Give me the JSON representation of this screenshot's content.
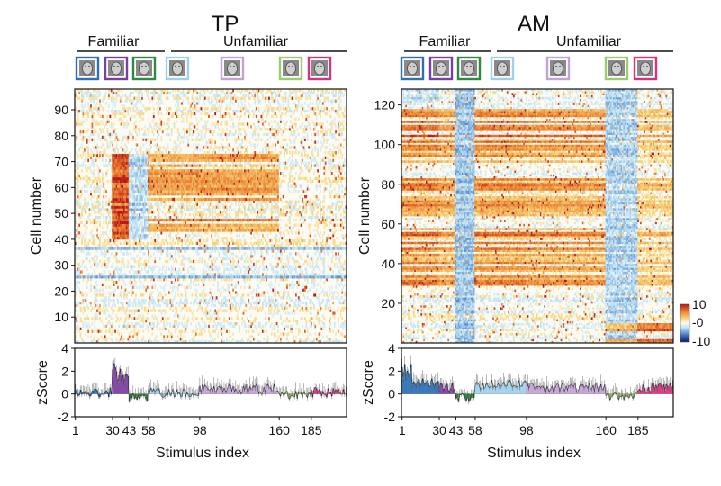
{
  "colors": {
    "stim_category": [
      "#2f6fb3",
      "#7b3fa0",
      "#2e8b3e",
      "#9fd0ea",
      "#c2a2d8",
      "#9dcc6e",
      "#d6337f"
    ],
    "colormap": [
      "#1a1760",
      "#3b6fc0",
      "#bfe3f5",
      "#fbfbf4",
      "#f7d67a",
      "#e8762c",
      "#b31717"
    ]
  },
  "chart_data": [
    {
      "type": "heatmap",
      "panel": "TP",
      "title": "TP",
      "group_labels": [
        "Familiar",
        "Unfamiliar"
      ],
      "ylabel": "Cell number",
      "ylim": [
        0,
        98
      ],
      "yticks": [
        "10",
        "20",
        "30",
        "40",
        "50",
        "60",
        "70",
        "80",
        "90"
      ],
      "n_cells": 98,
      "n_stimuli": 212,
      "stim_category_breaks": [
        29,
        42,
        57,
        97,
        159,
        184
      ]
    },
    {
      "type": "line",
      "panel": "TP-zscore",
      "ylabel": "zScore",
      "ylim": [
        -2,
        4
      ],
      "yticks": [
        "-2",
        "0",
        "2",
        "4"
      ],
      "xlabel": "Stimulus index",
      "xticks": [
        "1",
        "30",
        "43",
        "58",
        "98",
        "160",
        "185"
      ],
      "x_tick_values": [
        1,
        30,
        43,
        58,
        98,
        160,
        185
      ],
      "category_means": [
        0.1,
        1.3,
        -0.35,
        0.15,
        0.45,
        -0.1,
        0.15
      ]
    },
    {
      "type": "heatmap",
      "panel": "AM",
      "title": "AM",
      "group_labels": [
        "Familiar",
        "Unfamiliar"
      ],
      "ylabel": "Cell number",
      "ylim": [
        0,
        128
      ],
      "yticks": [
        "20",
        "40",
        "60",
        "80",
        "100",
        "120"
      ],
      "n_cells": 128,
      "n_stimuli": 212,
      "stim_category_breaks": [
        29,
        42,
        57,
        97,
        159,
        184
      ],
      "colorbar": {
        "ticks": [
          "10",
          "-0",
          "-10"
        ],
        "range": [
          -10,
          10
        ]
      }
    },
    {
      "type": "line",
      "panel": "AM-zscore",
      "ylabel": "zScore",
      "ylim": [
        -2,
        4
      ],
      "yticks": [
        "-2",
        "0",
        "2",
        "4"
      ],
      "xlabel": "Stimulus index",
      "xticks": [
        "1",
        "30",
        "43",
        "58",
        "98",
        "160",
        "185"
      ],
      "x_tick_values": [
        1,
        30,
        43,
        58,
        98,
        160,
        185
      ],
      "category_means": [
        0.9,
        0.6,
        -0.3,
        0.8,
        0.55,
        -0.2,
        0.55
      ]
    }
  ]
}
